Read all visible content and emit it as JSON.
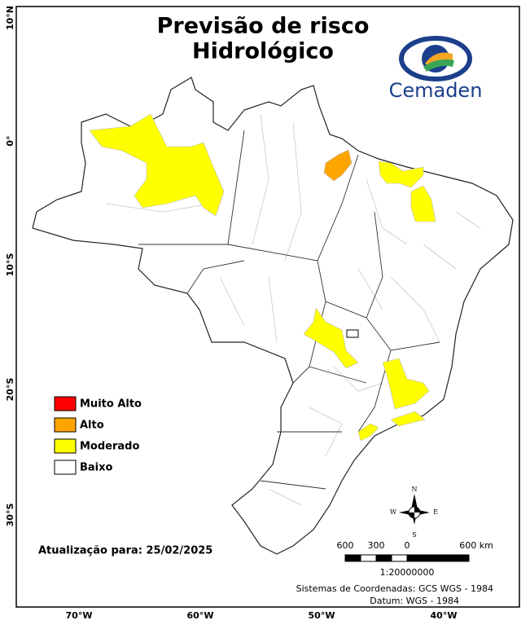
{
  "title_lines": [
    "Previsão de risco",
    "Hidrológico"
  ],
  "logo_text": "Cemaden",
  "legend": [
    {
      "label": "Muito Alto",
      "color": "#ff0000"
    },
    {
      "label": "Alto",
      "color": "#ffa500"
    },
    {
      "label": "Moderado",
      "color": "#ffff00"
    },
    {
      "label": "Baixo",
      "color": "#ffffff"
    }
  ],
  "lat_labels": [
    "10°N",
    "0°",
    "10°S",
    "20°S",
    "30°S"
  ],
  "lon_labels": [
    "70°W",
    "60°W",
    "50°W",
    "40°W"
  ],
  "update": "Atualização para: 25/02/2025",
  "scale": {
    "labels": [
      "600",
      "300",
      "0",
      "600 km"
    ],
    "ratio": "1:20000000"
  },
  "compass": {
    "n": "N",
    "e": "E",
    "s": "S",
    "w": "W"
  },
  "credits": [
    "Sistemas de Coordenadas: GCS WGS - 1984",
    "Datum: WGS - 1984"
  ]
}
